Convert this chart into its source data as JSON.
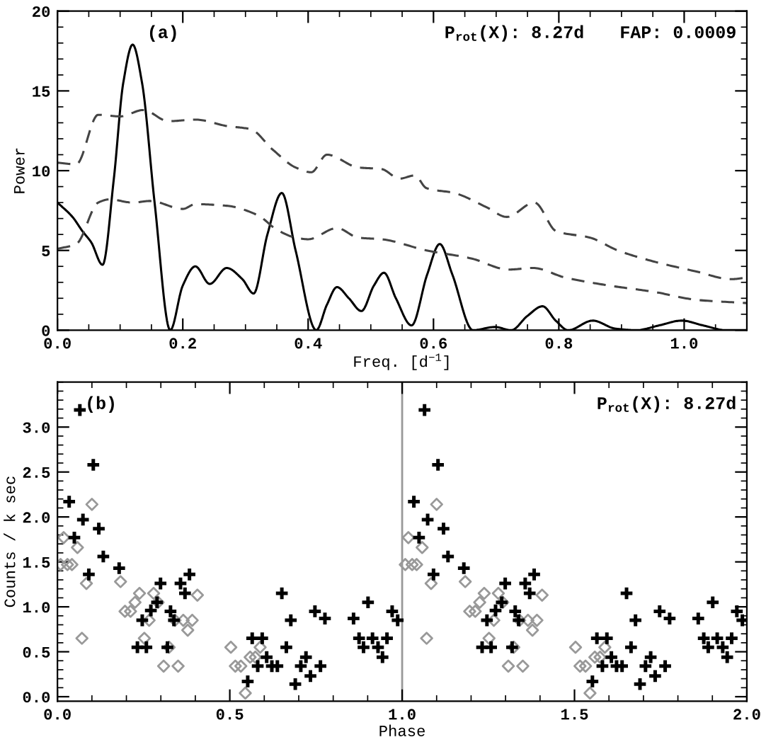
{
  "chart_data": [
    {
      "type": "line",
      "xlabel": "Freq. [d$^{−1}$]",
      "ylabel": "Power",
      "annotations": [
        "(a)",
        "P$_{rot}$(X): 8.27d",
        "FAP: 0.0009"
      ],
      "xlim": [
        0,
        1.1
      ],
      "xticks": [
        {
          "value": 0,
          "label": "0.0"
        },
        0.2,
        0.4,
        0.6,
        0.8,
        {
          "value": 1,
          "label": "1.0"
        }
      ],
      "ylim": [
        0,
        20
      ],
      "yticks": [
        0,
        5,
        10,
        15,
        20
      ],
      "series": [
        {
          "color": "#000000",
          "line_style": "solid",
          "x": [
            0,
            0.024,
            0.04,
            0.054,
            0.072,
            0.09,
            0.105,
            0.12,
            0.135,
            0.155,
            0.18,
            0.2,
            0.22,
            0.243,
            0.27,
            0.295,
            0.313,
            0.335,
            0.358,
            0.38,
            0.413,
            0.43,
            0.446,
            0.465,
            0.485,
            0.505,
            0.521,
            0.54,
            0.565,
            0.59,
            0.61,
            0.63,
            0.663,
            0.698,
            0.724,
            0.75,
            0.774,
            0.795,
            0.815,
            0.854,
            0.89,
            0.924,
            0.96,
            0.996,
            1.03,
            1.067,
            1.1
          ],
          "values": [
            8.0,
            7.1,
            6.2,
            5.5,
            4.1,
            9.5,
            15.5,
            17.9,
            15.5,
            8.0,
            0,
            2.8,
            4.0,
            2.9,
            3.9,
            3.2,
            2.3,
            6.0,
            8.6,
            5.0,
            0,
            1.6,
            2.7,
            2.0,
            1.2,
            2.8,
            3.6,
            2.0,
            0.3,
            3.5,
            5.4,
            3.5,
            0,
            0.2,
            0,
            0.9,
            1.5,
            0.6,
            0,
            0.6,
            0.1,
            0,
            0.3,
            0.6,
            0.3,
            0,
            0
          ]
        },
        {
          "color": "#444444",
          "line_style": "dashed",
          "x": [
            0,
            0.03,
            0.065,
            0.1,
            0.137,
            0.177,
            0.22,
            0.27,
            0.308,
            0.344,
            0.38,
            0.405,
            0.43,
            0.48,
            0.517,
            0.546,
            0.57,
            0.589,
            0.633,
            0.685,
            0.717,
            0.761,
            0.796,
            0.85,
            0.894,
            0.952,
            1.017,
            1.076,
            1.1
          ],
          "values": [
            10.5,
            10.4,
            13.5,
            13.4,
            13.8,
            13.1,
            13.2,
            12.8,
            12.6,
            11.3,
            10.2,
            9.9,
            11.0,
            10.2,
            10.1,
            9.5,
            9.7,
            8.9,
            8.6,
            7.7,
            7.1,
            8.0,
            6.2,
            5.8,
            5.0,
            4.3,
            3.7,
            3.2,
            3.3
          ]
        },
        {
          "color": "#444444",
          "line_style": "dashed",
          "x": [
            0,
            0.03,
            0.065,
            0.083,
            0.12,
            0.148,
            0.2,
            0.22,
            0.27,
            0.32,
            0.35,
            0.38,
            0.4,
            0.446,
            0.48,
            0.517,
            0.589,
            0.66,
            0.72,
            0.759,
            0.81,
            0.88,
            0.952,
            1.02,
            1.1
          ],
          "values": [
            5.1,
            5.4,
            8.0,
            8.2,
            8.0,
            8.1,
            7.6,
            7.9,
            7.8,
            7.2,
            6.3,
            5.8,
            5.7,
            6.4,
            5.8,
            5.7,
            5.0,
            4.5,
            3.8,
            3.9,
            3.3,
            2.8,
            2.4,
            1.9,
            1.7
          ]
        }
      ]
    },
    {
      "type": "scatter",
      "xlabel": "Phase",
      "ylabel": "Counts / k sec",
      "annotations": [
        "(b)",
        "P$_{rot}$(X): 8.27d"
      ],
      "xlim": [
        0,
        2
      ],
      "xticks": [
        {
          "value": 0,
          "label": "0.0"
        },
        0.5,
        {
          "value": 1,
          "label": "1.0"
        },
        1.5,
        {
          "value": 2,
          "label": "2.0"
        }
      ],
      "ylim": [
        -0.05,
        3.5
      ],
      "yticks": [
        {
          "value": 0,
          "label": "0.0"
        },
        0.5,
        {
          "value": 1,
          "label": "1.0"
        },
        1.5,
        {
          "value": 2,
          "label": "2.0"
        },
        2.5,
        {
          "value": 3,
          "label": "3.0"
        }
      ],
      "ref_lines": [
        {
          "axis": "x",
          "value": 1,
          "color": "#999999"
        }
      ],
      "series": [
        {
          "color": "#999999",
          "marker": "diamond",
          "x": [
            0.009,
            0.018,
            0.029,
            0.042,
            0.058,
            0.071,
            0.084,
            0.1,
            0.183,
            0.196,
            0.212,
            0.225,
            0.238,
            0.252,
            0.266,
            0.279,
            0.292,
            0.308,
            0.324,
            0.341,
            0.35,
            0.365,
            0.378,
            0.391,
            0.406,
            0.503,
            0.516,
            0.532,
            0.545,
            0.559,
            0.574,
            0.588,
            1.009,
            1.018,
            1.029,
            1.042,
            1.058,
            1.071,
            1.084,
            1.1,
            1.183,
            1.196,
            1.212,
            1.225,
            1.238,
            1.252,
            1.266,
            1.279,
            1.292,
            1.308,
            1.324,
            1.341,
            1.35,
            1.365,
            1.378,
            1.391,
            1.406,
            1.503,
            1.516,
            1.532,
            1.545,
            1.559,
            1.574,
            1.588
          ],
          "values": [
            1.47,
            1.77,
            1.47,
            1.47,
            1.66,
            0.65,
            1.26,
            2.14,
            1.28,
            0.95,
            0.95,
            1.05,
            1.15,
            0.65,
            0.85,
            1.15,
            1.05,
            0.34,
            0.55,
            0.85,
            0.34,
            0.85,
            0.74,
            0.85,
            1.13,
            0.55,
            0.34,
            0.34,
            0.04,
            0.44,
            0.44,
            0.55,
            1.47,
            1.77,
            1.47,
            1.47,
            1.66,
            0.65,
            1.26,
            2.14,
            1.28,
            0.95,
            0.95,
            1.05,
            1.15,
            0.65,
            0.85,
            1.15,
            1.05,
            0.34,
            0.55,
            0.85,
            0.34,
            0.85,
            0.74,
            0.85,
            1.13,
            0.55,
            0.34,
            0.34,
            0.04,
            0.44,
            0.44,
            0.55
          ]
        },
        {
          "color": "#000000",
          "marker": "cross",
          "x": [
            0.034,
            0.049,
            0.065,
            0.074,
            0.091,
            0.104,
            0.12,
            0.133,
            0.179,
            0.232,
            0.246,
            0.258,
            0.271,
            0.289,
            0.299,
            0.319,
            0.328,
            0.338,
            0.357,
            0.37,
            0.383,
            0.552,
            0.565,
            0.581,
            0.594,
            0.607,
            0.622,
            0.638,
            0.651,
            0.664,
            0.677,
            0.69,
            0.706,
            0.721,
            0.734,
            0.747,
            0.763,
            0.776,
            0.859,
            0.875,
            0.888,
            0.901,
            0.914,
            0.93,
            0.943,
            0.956,
            0.971,
            0.987,
            1.034,
            1.049,
            1.065,
            1.074,
            1.091,
            1.104,
            1.12,
            1.133,
            1.179,
            1.232,
            1.246,
            1.258,
            1.271,
            1.289,
            1.299,
            1.319,
            1.328,
            1.338,
            1.357,
            1.37,
            1.383,
            1.552,
            1.565,
            1.581,
            1.594,
            1.607,
            1.622,
            1.638,
            1.651,
            1.664,
            1.677,
            1.69,
            1.706,
            1.721,
            1.734,
            1.747,
            1.763,
            1.776,
            1.859,
            1.875,
            1.888,
            1.901,
            1.914,
            1.93,
            1.943,
            1.956,
            1.971,
            1.987
          ],
          "values": [
            2.17,
            1.77,
            3.19,
            1.97,
            1.36,
            2.58,
            1.87,
            1.56,
            1.43,
            0.55,
            0.85,
            0.55,
            0.96,
            1.05,
            1.26,
            0.55,
            0.95,
            0.85,
            1.26,
            1.15,
            1.36,
            0.17,
            0.65,
            0.34,
            0.65,
            0.44,
            0.34,
            0.34,
            1.15,
            0.55,
            0.85,
            0.14,
            0.34,
            0.44,
            0.23,
            0.95,
            0.34,
            0.87,
            0.87,
            0.65,
            0.55,
            1.05,
            0.65,
            0.55,
            0.44,
            0.65,
            0.95,
            0.85,
            2.17,
            1.77,
            3.19,
            1.97,
            1.36,
            2.58,
            1.87,
            1.56,
            1.43,
            0.55,
            0.85,
            0.55,
            0.96,
            1.05,
            1.26,
            0.55,
            0.95,
            0.85,
            1.26,
            1.15,
            1.36,
            0.17,
            0.65,
            0.34,
            0.65,
            0.44,
            0.34,
            0.34,
            1.15,
            0.55,
            0.85,
            0.14,
            0.34,
            0.44,
            0.23,
            0.95,
            0.34,
            0.87,
            0.87,
            0.65,
            0.55,
            1.05,
            0.65,
            0.55,
            0.44,
            0.65,
            0.95,
            0.85
          ]
        }
      ]
    }
  ]
}
